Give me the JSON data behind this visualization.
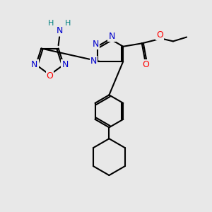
{
  "bg_color": "#e8e8e8",
  "bond_color": "#000000",
  "bond_width": 1.5,
  "atom_colors": {
    "N": "#0000cc",
    "O": "#ff0000",
    "H_amino": "#008080",
    "C": "#000000"
  }
}
